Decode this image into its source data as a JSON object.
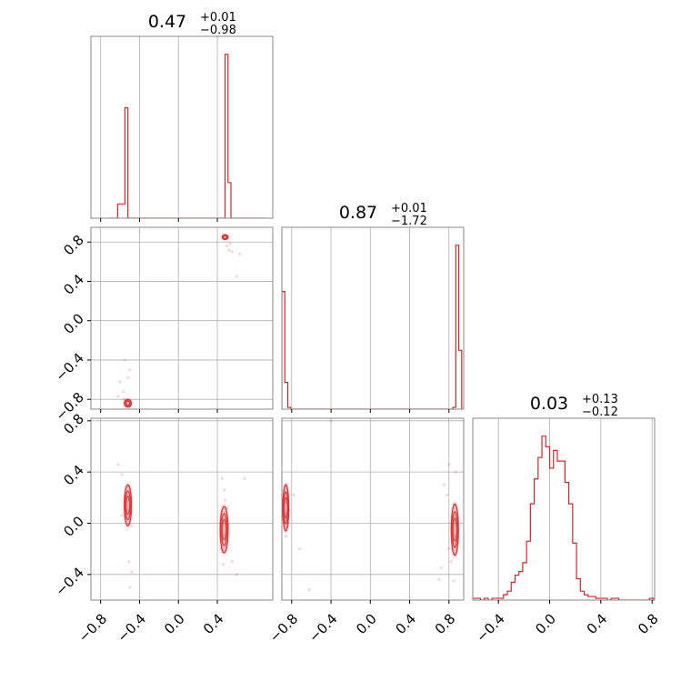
{
  "chart_data": {
    "type": "corner",
    "color": "#d62728",
    "grid": true,
    "parameters": [
      {
        "title_value": "0.47",
        "title_plus": "+0.01",
        "title_minus": "−0.98",
        "range": [
          -0.9,
          0.97
        ],
        "ticks": [
          -0.8,
          -0.4,
          0.0,
          0.4
        ],
        "tick_labels": [
          "−0.8",
          "−0.4",
          "0.0",
          "0.4"
        ],
        "histogram": {
          "bins": [
            -0.7,
            -0.625,
            -0.55,
            -0.52,
            -0.49,
            0.48,
            0.51,
            0.54,
            0.57,
            0.9
          ],
          "heights": [
            0,
            0.08,
            0.62,
            0,
            0,
            0.92,
            0.2,
            0,
            0
          ]
        }
      },
      {
        "title_value": "0.87",
        "title_plus": "+0.01",
        "title_minus": "−1.72",
        "range": [
          -0.9,
          0.95
        ],
        "ticks": [
          -0.8,
          -0.4,
          0.0,
          0.4,
          0.8
        ],
        "tick_labels": [
          "−0.8",
          "−0.4",
          "0.0",
          "0.4",
          "0.8"
        ],
        "histogram": {
          "bins": [
            -0.9,
            -0.87,
            -0.84,
            -0.81,
            0.84,
            0.87,
            0.9,
            0.93
          ],
          "heights": [
            0.66,
            0.15,
            0.01,
            0,
            0.01,
            0.92,
            0.33
          ]
        }
      },
      {
        "title_value": "0.03",
        "title_plus": "+0.13",
        "title_minus": "−0.12",
        "range": [
          -0.6,
          0.82
        ],
        "ticks": [
          -0.4,
          0.0,
          0.4,
          0.8
        ],
        "tick_labels": [
          "−0.4",
          "0.0",
          "0.4",
          "0.8"
        ],
        "histogram": {
          "bins": [
            -0.6,
            -0.57,
            -0.54,
            -0.51,
            -0.48,
            -0.45,
            -0.42,
            -0.39,
            -0.36,
            -0.33,
            -0.3,
            -0.27,
            -0.24,
            -0.21,
            -0.18,
            -0.15,
            -0.12,
            -0.09,
            -0.06,
            -0.03,
            0.0,
            0.03,
            0.06,
            0.09,
            0.12,
            0.15,
            0.18,
            0.21,
            0.24,
            0.27,
            0.3,
            0.33,
            0.36,
            0.39,
            0.42,
            0.45,
            0.48,
            0.51,
            0.54,
            0.57,
            0.6,
            0.63,
            0.66,
            0.69,
            0.72,
            0.75,
            0.78,
            0.81
          ],
          "heights": [
            0.01,
            0.01,
            0,
            0.01,
            0,
            0.01,
            0.01,
            0.01,
            0.03,
            0.05,
            0.1,
            0.14,
            0.16,
            0.21,
            0.33,
            0.54,
            0.68,
            0.8,
            0.92,
            0.86,
            0.74,
            0.84,
            0.78,
            0.78,
            0.66,
            0.54,
            0.32,
            0.12,
            0.05,
            0.03,
            0.02,
            0.02,
            0.01,
            0.01,
            0.01,
            0,
            0.01,
            0.01,
            0,
            0,
            0,
            0,
            0,
            0,
            0,
            0,
            0.01
          ]
        }
      }
    ],
    "pairs": [
      {
        "xparam": 0,
        "yparam": 1,
        "modes": [
          {
            "x": 0.48,
            "y": 0.85,
            "sx": 0.015,
            "sy": 0.012
          },
          {
            "x": -0.52,
            "y": -0.84,
            "sx": 0.018,
            "sy": 0.02
          }
        ],
        "points": [
          [
            0.52,
            0.72
          ],
          [
            0.55,
            0.7
          ],
          [
            0.63,
            0.68
          ],
          [
            0.6,
            0.45
          ],
          [
            -0.55,
            -0.4
          ],
          [
            -0.6,
            -0.62
          ],
          [
            -0.52,
            -0.58
          ],
          [
            -0.5,
            -0.5
          ],
          [
            -0.57,
            -0.72
          ],
          [
            -0.62,
            -0.77
          ],
          [
            -0.56,
            -0.8
          ],
          [
            0.53,
            0.78
          ],
          [
            0.5,
            0.76
          ]
        ]
      },
      {
        "xparam": 0,
        "yparam": 2,
        "modes": [
          {
            "x": -0.52,
            "y": 0.14,
            "sx": 0.018,
            "sy": 0.08
          },
          {
            "x": 0.47,
            "y": -0.05,
            "sx": 0.02,
            "sy": 0.09
          }
        ],
        "points": [
          [
            -0.62,
            0.46
          ],
          [
            -0.58,
            0.38
          ],
          [
            -0.55,
            0.2
          ],
          [
            -0.48,
            -0.02
          ],
          [
            -0.51,
            -0.3
          ],
          [
            -0.5,
            -0.5
          ],
          [
            -0.48,
            -0.38
          ],
          [
            -0.58,
            0.06
          ],
          [
            0.45,
            0.35
          ],
          [
            0.47,
            0.26
          ],
          [
            0.5,
            0.12
          ],
          [
            0.44,
            -0.2
          ],
          [
            0.46,
            -0.32
          ],
          [
            0.55,
            -0.3
          ],
          [
            0.6,
            -0.4
          ],
          [
            0.58,
            -0.62
          ],
          [
            0.48,
            0.18
          ],
          [
            0.45,
            -0.22
          ],
          [
            0.68,
            0.35
          ]
        ]
      },
      {
        "xparam": 1,
        "yparam": 2,
        "modes": [
          {
            "x": -0.86,
            "y": 0.12,
            "sx": 0.015,
            "sy": 0.09
          },
          {
            "x": 0.86,
            "y": -0.05,
            "sx": 0.018,
            "sy": 0.1
          }
        ],
        "points": [
          [
            -0.85,
            0.3
          ],
          [
            -0.78,
            0.22
          ],
          [
            -0.72,
            -0.2
          ],
          [
            -0.62,
            -0.52
          ],
          [
            -0.4,
            0.8
          ],
          [
            -0.83,
            0.1
          ],
          [
            -0.86,
            -0.1
          ],
          [
            0.75,
            0.3
          ],
          [
            0.78,
            0.22
          ],
          [
            0.8,
            0.46
          ],
          [
            0.82,
            -0.3
          ],
          [
            0.72,
            -0.35
          ],
          [
            0.8,
            -0.2
          ],
          [
            0.84,
            0.05
          ],
          [
            0.85,
            -0.45
          ],
          [
            0.87,
            0.4
          ],
          [
            0.7,
            -0.44
          ]
        ]
      }
    ]
  }
}
